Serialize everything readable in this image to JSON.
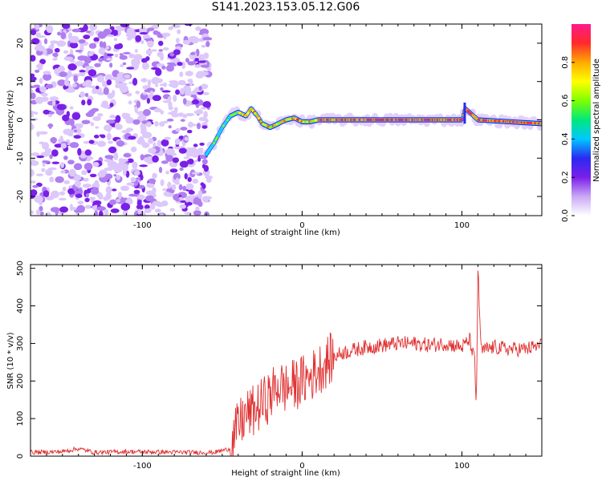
{
  "title": "S141.2023.153.05.12.G06",
  "chart_data": [
    {
      "type": "heatmap",
      "xlabel": "Height of straight line (km)",
      "ylabel": "Frequency (Hz)",
      "xlim": [
        -170,
        150
      ],
      "ylim": [
        -25,
        25
      ],
      "xticks": [
        -100,
        0,
        100
      ],
      "yticks": [
        -20,
        -10,
        0,
        10,
        20
      ],
      "colorbar": {
        "label": "Normalized spectral amplitude",
        "range": [
          0,
          1
        ],
        "ticks": [
          0.0,
          0.2,
          0.4,
          0.6,
          0.8
        ],
        "colormap": [
          "#ffffff",
          "#c9a8f5",
          "#7a1fe8",
          "#2a2af0",
          "#00c8ff",
          "#00e87a",
          "#7fff00",
          "#ffff00",
          "#ffaa00",
          "#ff2a2a",
          "#ff1a8c"
        ]
      },
      "features": {
        "noise_region_x": [
          -170,
          -58
        ],
        "signal_track": [
          {
            "x": -60,
            "y": -9
          },
          {
            "x": -55,
            "y": -6
          },
          {
            "x": -50,
            "y": -2
          },
          {
            "x": -45,
            "y": 1
          },
          {
            "x": -40,
            "y": 2
          },
          {
            "x": -35,
            "y": 1
          },
          {
            "x": -32,
            "y": 3
          },
          {
            "x": -28,
            "y": 1
          },
          {
            "x": -25,
            "y": -1
          },
          {
            "x": -20,
            "y": -2
          },
          {
            "x": -15,
            "y": -1
          },
          {
            "x": -10,
            "y": 0
          },
          {
            "x": -5,
            "y": 0.5
          },
          {
            "x": 0,
            "y": -0.5
          },
          {
            "x": 5,
            "y": -0.5
          },
          {
            "x": 10,
            "y": 0
          },
          {
            "x": 40,
            "y": 0
          },
          {
            "x": 80,
            "y": 0
          },
          {
            "x": 100,
            "y": 0
          },
          {
            "x": 102,
            "y": 3
          },
          {
            "x": 110,
            "y": 0
          },
          {
            "x": 150,
            "y": -1
          }
        ]
      }
    },
    {
      "type": "line",
      "xlabel": "Height of straight line (km)",
      "ylabel": "SNR (10 * v/v)",
      "xlim": [
        -170,
        150
      ],
      "ylim": [
        0,
        510
      ],
      "xticks": [
        -100,
        0,
        100
      ],
      "yticks": [
        0,
        100,
        200,
        300,
        400,
        500
      ],
      "series": [
        {
          "color": "#e03030",
          "x": [
            -170,
            -150,
            -140,
            -130,
            -110,
            -90,
            -70,
            -55,
            -45,
            -40,
            -35,
            -30,
            -25,
            -20,
            -15,
            -10,
            -5,
            0,
            5,
            10,
            15,
            20,
            25,
            30,
            40,
            50,
            60,
            70,
            80,
            90,
            100,
            105,
            108,
            109,
            110,
            112,
            120,
            130,
            140,
            150
          ],
          "y": [
            10,
            12,
            20,
            10,
            12,
            11,
            10,
            10,
            20,
            80,
            110,
            120,
            140,
            160,
            190,
            180,
            190,
            200,
            210,
            230,
            250,
            265,
            275,
            280,
            290,
            295,
            300,
            300,
            295,
            300,
            290,
            310,
            250,
            120,
            500,
            280,
            290,
            285,
            285,
            295
          ]
        }
      ]
    }
  ]
}
